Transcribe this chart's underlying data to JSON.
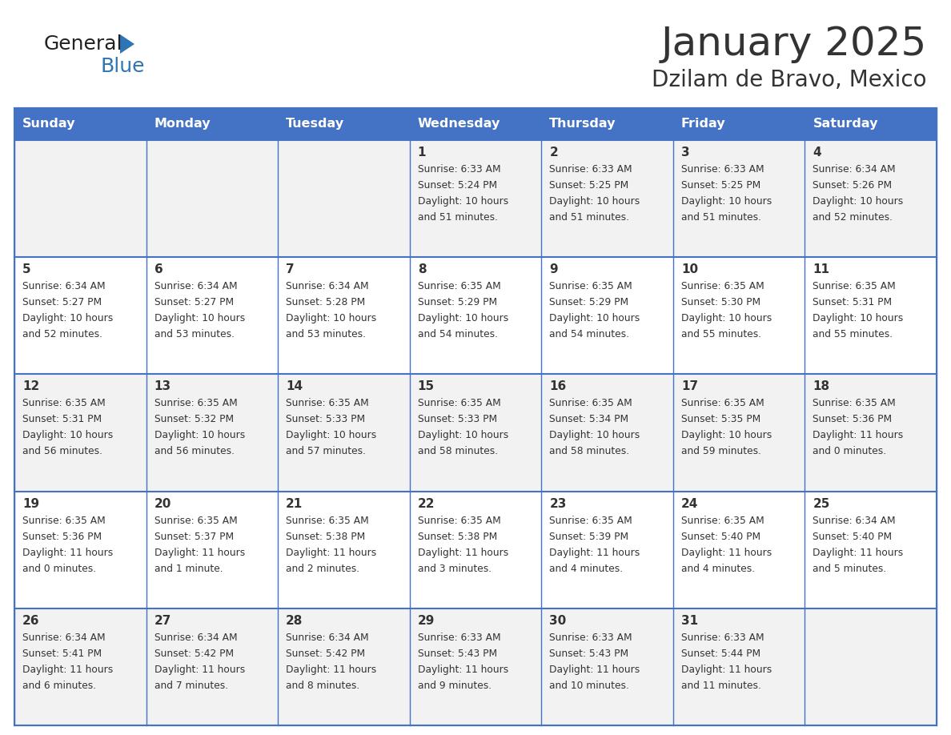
{
  "title": "January 2025",
  "subtitle": "Dzilam de Bravo, Mexico",
  "days_of_week": [
    "Sunday",
    "Monday",
    "Tuesday",
    "Wednesday",
    "Thursday",
    "Friday",
    "Saturday"
  ],
  "header_bg": "#4472C4",
  "header_text_color": "#FFFFFF",
  "cell_bg_odd": "#F2F2F2",
  "cell_bg_even": "#FFFFFF",
  "grid_color": "#4472C4",
  "text_color": "#333333",
  "logo_general_color": "#222222",
  "logo_blue_color": "#2E75B6",
  "calendar_data": [
    [
      {
        "day": null,
        "sunrise": null,
        "sunset": null,
        "daylight_line1": null,
        "daylight_line2": null
      },
      {
        "day": null,
        "sunrise": null,
        "sunset": null,
        "daylight_line1": null,
        "daylight_line2": null
      },
      {
        "day": null,
        "sunrise": null,
        "sunset": null,
        "daylight_line1": null,
        "daylight_line2": null
      },
      {
        "day": "1",
        "sunrise": "Sunrise: 6:33 AM",
        "sunset": "Sunset: 5:24 PM",
        "daylight_line1": "Daylight: 10 hours",
        "daylight_line2": "and 51 minutes."
      },
      {
        "day": "2",
        "sunrise": "Sunrise: 6:33 AM",
        "sunset": "Sunset: 5:25 PM",
        "daylight_line1": "Daylight: 10 hours",
        "daylight_line2": "and 51 minutes."
      },
      {
        "day": "3",
        "sunrise": "Sunrise: 6:33 AM",
        "sunset": "Sunset: 5:25 PM",
        "daylight_line1": "Daylight: 10 hours",
        "daylight_line2": "and 51 minutes."
      },
      {
        "day": "4",
        "sunrise": "Sunrise: 6:34 AM",
        "sunset": "Sunset: 5:26 PM",
        "daylight_line1": "Daylight: 10 hours",
        "daylight_line2": "and 52 minutes."
      }
    ],
    [
      {
        "day": "5",
        "sunrise": "Sunrise: 6:34 AM",
        "sunset": "Sunset: 5:27 PM",
        "daylight_line1": "Daylight: 10 hours",
        "daylight_line2": "and 52 minutes."
      },
      {
        "day": "6",
        "sunrise": "Sunrise: 6:34 AM",
        "sunset": "Sunset: 5:27 PM",
        "daylight_line1": "Daylight: 10 hours",
        "daylight_line2": "and 53 minutes."
      },
      {
        "day": "7",
        "sunrise": "Sunrise: 6:34 AM",
        "sunset": "Sunset: 5:28 PM",
        "daylight_line1": "Daylight: 10 hours",
        "daylight_line2": "and 53 minutes."
      },
      {
        "day": "8",
        "sunrise": "Sunrise: 6:35 AM",
        "sunset": "Sunset: 5:29 PM",
        "daylight_line1": "Daylight: 10 hours",
        "daylight_line2": "and 54 minutes."
      },
      {
        "day": "9",
        "sunrise": "Sunrise: 6:35 AM",
        "sunset": "Sunset: 5:29 PM",
        "daylight_line1": "Daylight: 10 hours",
        "daylight_line2": "and 54 minutes."
      },
      {
        "day": "10",
        "sunrise": "Sunrise: 6:35 AM",
        "sunset": "Sunset: 5:30 PM",
        "daylight_line1": "Daylight: 10 hours",
        "daylight_line2": "and 55 minutes."
      },
      {
        "day": "11",
        "sunrise": "Sunrise: 6:35 AM",
        "sunset": "Sunset: 5:31 PM",
        "daylight_line1": "Daylight: 10 hours",
        "daylight_line2": "and 55 minutes."
      }
    ],
    [
      {
        "day": "12",
        "sunrise": "Sunrise: 6:35 AM",
        "sunset": "Sunset: 5:31 PM",
        "daylight_line1": "Daylight: 10 hours",
        "daylight_line2": "and 56 minutes."
      },
      {
        "day": "13",
        "sunrise": "Sunrise: 6:35 AM",
        "sunset": "Sunset: 5:32 PM",
        "daylight_line1": "Daylight: 10 hours",
        "daylight_line2": "and 56 minutes."
      },
      {
        "day": "14",
        "sunrise": "Sunrise: 6:35 AM",
        "sunset": "Sunset: 5:33 PM",
        "daylight_line1": "Daylight: 10 hours",
        "daylight_line2": "and 57 minutes."
      },
      {
        "day": "15",
        "sunrise": "Sunrise: 6:35 AM",
        "sunset": "Sunset: 5:33 PM",
        "daylight_line1": "Daylight: 10 hours",
        "daylight_line2": "and 58 minutes."
      },
      {
        "day": "16",
        "sunrise": "Sunrise: 6:35 AM",
        "sunset": "Sunset: 5:34 PM",
        "daylight_line1": "Daylight: 10 hours",
        "daylight_line2": "and 58 minutes."
      },
      {
        "day": "17",
        "sunrise": "Sunrise: 6:35 AM",
        "sunset": "Sunset: 5:35 PM",
        "daylight_line1": "Daylight: 10 hours",
        "daylight_line2": "and 59 minutes."
      },
      {
        "day": "18",
        "sunrise": "Sunrise: 6:35 AM",
        "sunset": "Sunset: 5:36 PM",
        "daylight_line1": "Daylight: 11 hours",
        "daylight_line2": "and 0 minutes."
      }
    ],
    [
      {
        "day": "19",
        "sunrise": "Sunrise: 6:35 AM",
        "sunset": "Sunset: 5:36 PM",
        "daylight_line1": "Daylight: 11 hours",
        "daylight_line2": "and 0 minutes."
      },
      {
        "day": "20",
        "sunrise": "Sunrise: 6:35 AM",
        "sunset": "Sunset: 5:37 PM",
        "daylight_line1": "Daylight: 11 hours",
        "daylight_line2": "and 1 minute."
      },
      {
        "day": "21",
        "sunrise": "Sunrise: 6:35 AM",
        "sunset": "Sunset: 5:38 PM",
        "daylight_line1": "Daylight: 11 hours",
        "daylight_line2": "and 2 minutes."
      },
      {
        "day": "22",
        "sunrise": "Sunrise: 6:35 AM",
        "sunset": "Sunset: 5:38 PM",
        "daylight_line1": "Daylight: 11 hours",
        "daylight_line2": "and 3 minutes."
      },
      {
        "day": "23",
        "sunrise": "Sunrise: 6:35 AM",
        "sunset": "Sunset: 5:39 PM",
        "daylight_line1": "Daylight: 11 hours",
        "daylight_line2": "and 4 minutes."
      },
      {
        "day": "24",
        "sunrise": "Sunrise: 6:35 AM",
        "sunset": "Sunset: 5:40 PM",
        "daylight_line1": "Daylight: 11 hours",
        "daylight_line2": "and 4 minutes."
      },
      {
        "day": "25",
        "sunrise": "Sunrise: 6:34 AM",
        "sunset": "Sunset: 5:40 PM",
        "daylight_line1": "Daylight: 11 hours",
        "daylight_line2": "and 5 minutes."
      }
    ],
    [
      {
        "day": "26",
        "sunrise": "Sunrise: 6:34 AM",
        "sunset": "Sunset: 5:41 PM",
        "daylight_line1": "Daylight: 11 hours",
        "daylight_line2": "and 6 minutes."
      },
      {
        "day": "27",
        "sunrise": "Sunrise: 6:34 AM",
        "sunset": "Sunset: 5:42 PM",
        "daylight_line1": "Daylight: 11 hours",
        "daylight_line2": "and 7 minutes."
      },
      {
        "day": "28",
        "sunrise": "Sunrise: 6:34 AM",
        "sunset": "Sunset: 5:42 PM",
        "daylight_line1": "Daylight: 11 hours",
        "daylight_line2": "and 8 minutes."
      },
      {
        "day": "29",
        "sunrise": "Sunrise: 6:33 AM",
        "sunset": "Sunset: 5:43 PM",
        "daylight_line1": "Daylight: 11 hours",
        "daylight_line2": "and 9 minutes."
      },
      {
        "day": "30",
        "sunrise": "Sunrise: 6:33 AM",
        "sunset": "Sunset: 5:43 PM",
        "daylight_line1": "Daylight: 11 hours",
        "daylight_line2": "and 10 minutes."
      },
      {
        "day": "31",
        "sunrise": "Sunrise: 6:33 AM",
        "sunset": "Sunset: 5:44 PM",
        "daylight_line1": "Daylight: 11 hours",
        "daylight_line2": "and 11 minutes."
      },
      {
        "day": null,
        "sunrise": null,
        "sunset": null,
        "daylight_line1": null,
        "daylight_line2": null
      }
    ]
  ]
}
